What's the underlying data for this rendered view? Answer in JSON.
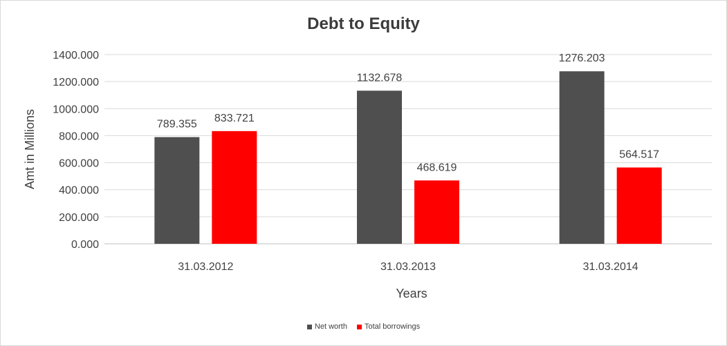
{
  "chart_data": {
    "type": "bar",
    "title": "Debt to Equity",
    "xlabel": "Years",
    "ylabel": "Amt in Millions",
    "categories": [
      "31.03.2012",
      "31.03.2013",
      "31.03.2014"
    ],
    "series": [
      {
        "name": "Net worth",
        "color": "#4f4f4f",
        "values": [
          789.355,
          1132.678,
          1276.203
        ],
        "labels": [
          "789.355",
          "1132.678",
          "1276.203"
        ]
      },
      {
        "name": "Total borrowings",
        "color": "#ff0000",
        "values": [
          833.721,
          468.619,
          564.517
        ],
        "labels": [
          "833.721",
          "468.619",
          "564.517"
        ]
      }
    ],
    "ylim": [
      0,
      1400
    ],
    "yticks": [
      "0.000",
      "200.000",
      "400.000",
      "600.000",
      "800.000",
      "1000.000",
      "1200.000",
      "1400.000"
    ],
    "grid": true,
    "legend_position": "bottom"
  }
}
